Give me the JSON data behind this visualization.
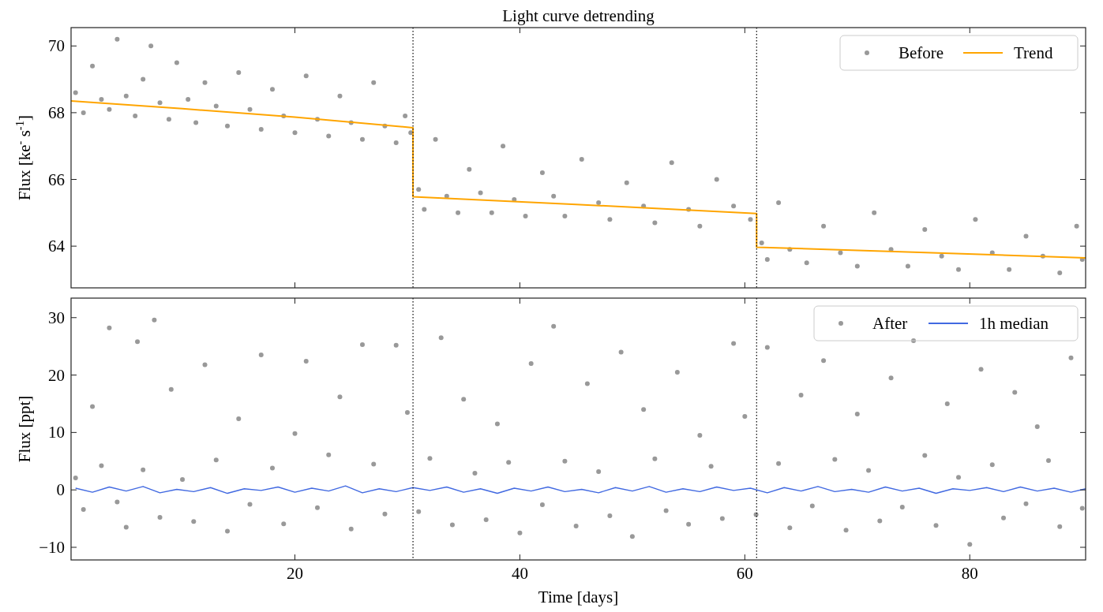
{
  "chart_data": [
    {
      "type": "scatter",
      "title": "Light curve detrending",
      "ylabel": "Flux [ke$^{-}$ s$^{-1}$]",
      "xlim": [
        0.1,
        90.3
      ],
      "xticks": [
        20,
        40,
        60,
        80
      ],
      "ylim": [
        62.75,
        70.55
      ],
      "yticks": [
        64,
        66,
        68,
        70
      ],
      "tick_labels": "y",
      "legend": "top right",
      "marker": "circle",
      "ref_lines": [
        {
          "axis": "x",
          "value": 30.5,
          "color": "#000000",
          "line_style": "dotted"
        },
        {
          "axis": "x",
          "value": 61.05,
          "color": "#000000",
          "line_style": "dotted"
        }
      ],
      "series": [
        {
          "name": "Before",
          "type": "scatter",
          "color": "#999999",
          "x": [
            0.5,
            1.2,
            2,
            2.8,
            3.5,
            4.2,
            5,
            5.8,
            6.5,
            7.2,
            8,
            8.8,
            9.5,
            10.5,
            11.2,
            12,
            13,
            14,
            15,
            16,
            17,
            18,
            19,
            20,
            21,
            22,
            23,
            24,
            25,
            26,
            27,
            28,
            29,
            29.8,
            30.3,
            31,
            31.5,
            32.5,
            33.5,
            34.5,
            35.5,
            36.5,
            37.5,
            38.5,
            39.5,
            40.5,
            42,
            43,
            44,
            45.5,
            47,
            48,
            49.5,
            51,
            52,
            53.5,
            55,
            56,
            57.5,
            59,
            60.5,
            61.5,
            62,
            63,
            64,
            65.5,
            67,
            68.5,
            70,
            71.5,
            73,
            74.5,
            76,
            77.5,
            79,
            80.5,
            82,
            83.5,
            85,
            86.5,
            88,
            89.5,
            90
          ],
          "values": [
            68.6,
            68.0,
            69.4,
            68.4,
            68.1,
            70.2,
            68.5,
            67.9,
            69.0,
            70.0,
            68.3,
            67.8,
            69.5,
            68.4,
            67.7,
            68.9,
            68.2,
            67.6,
            69.2,
            68.1,
            67.5,
            68.7,
            67.9,
            67.4,
            69.1,
            67.8,
            67.3,
            68.5,
            67.7,
            67.2,
            68.9,
            67.6,
            67.1,
            67.9,
            67.4,
            65.7,
            65.1,
            67.2,
            65.5,
            65.0,
            66.3,
            65.6,
            65.0,
            67.0,
            65.4,
            64.9,
            66.2,
            65.5,
            64.9,
            66.6,
            65.3,
            64.8,
            65.9,
            65.2,
            64.7,
            66.5,
            65.1,
            64.6,
            66.0,
            65.2,
            64.8,
            64.1,
            63.6,
            65.3,
            63.9,
            63.5,
            64.6,
            63.8,
            63.4,
            65.0,
            63.9,
            63.4,
            64.5,
            63.7,
            63.3,
            64.8,
            63.8,
            63.3,
            64.3,
            63.7,
            63.2,
            64.6,
            63.6
          ]
        },
        {
          "name": "Trend",
          "type": "line",
          "marker": "none",
          "color": "#ffa500",
          "x": [
            0.1,
            10,
            20,
            30.5,
            30.5,
            45,
            61.05,
            61.05,
            75,
            90.3
          ],
          "values": [
            68.35,
            68.12,
            67.87,
            67.55,
            65.48,
            65.25,
            64.98,
            63.97,
            63.82,
            63.65
          ]
        }
      ]
    },
    {
      "type": "scatter",
      "xlabel": "Time [days]",
      "ylabel": "Flux [ppt]",
      "xlim": [
        0.1,
        90.3
      ],
      "xticks": [
        20,
        40,
        60,
        80
      ],
      "ylim": [
        -12.2,
        33.4
      ],
      "yticks": [
        -10,
        0,
        10,
        20,
        30
      ],
      "legend": "top right",
      "marker": "circle",
      "ref_lines": [
        {
          "axis": "x",
          "value": 30.5,
          "color": "#000000",
          "line_style": "dotted"
        },
        {
          "axis": "x",
          "value": 61.05,
          "color": "#000000",
          "line_style": "dotted"
        }
      ],
      "series": [
        {
          "name": "After",
          "type": "scatter",
          "color": "#999999",
          "x": [
            0.5,
            1.2,
            2,
            2.8,
            3.5,
            4.2,
            5,
            6,
            6.5,
            7.5,
            8,
            9,
            10,
            11,
            12,
            13,
            14,
            15,
            16,
            17,
            18,
            19,
            20,
            21,
            22,
            23,
            24,
            25,
            26,
            27,
            28,
            29,
            30,
            31,
            32,
            33,
            34,
            35,
            36,
            37,
            38,
            39,
            40,
            41,
            42,
            43,
            44,
            45,
            46,
            47,
            48,
            49,
            50,
            51,
            52,
            53,
            54,
            55,
            56,
            57,
            58,
            59,
            60,
            61,
            62,
            63,
            64,
            65,
            66,
            67,
            68,
            69,
            70,
            71,
            72,
            73,
            74,
            75,
            76,
            77,
            78,
            79,
            80,
            81,
            82,
            83,
            84,
            85,
            86,
            87,
            88,
            89,
            90
          ],
          "values": [
            2.1,
            -3.4,
            14.5,
            4.2,
            28.2,
            -2.1,
            -6.5,
            25.8,
            3.5,
            29.6,
            -4.8,
            17.5,
            1.8,
            -5.5,
            21.8,
            5.2,
            -7.2,
            12.4,
            -2.5,
            23.5,
            3.8,
            -5.9,
            9.8,
            22.4,
            -3.1,
            6.1,
            16.2,
            -6.8,
            25.3,
            4.5,
            -4.2,
            25.2,
            13.5,
            -3.8,
            5.5,
            26.5,
            -6.1,
            15.8,
            2.9,
            -5.2,
            11.5,
            4.8,
            -7.5,
            22.0,
            -2.6,
            28.5,
            5.0,
            -6.3,
            18.5,
            3.2,
            -4.5,
            24.0,
            -8.1,
            14.0,
            5.4,
            -3.6,
            20.5,
            -6.0,
            9.5,
            4.1,
            -5.0,
            25.5,
            12.8,
            -4.3,
            24.8,
            4.6,
            -6.6,
            16.5,
            -2.8,
            22.5,
            5.3,
            -7.0,
            13.2,
            3.4,
            -5.4,
            19.5,
            -3.0,
            26.0,
            6.0,
            -6.2,
            15.0,
            2.2,
            -9.5,
            21.0,
            4.4,
            -4.9,
            17.0,
            -2.4,
            11.0,
            5.1,
            -6.4,
            23.0,
            -3.2
          ]
        },
        {
          "name": "1h median",
          "type": "line",
          "marker": "none",
          "color": "#4169e1",
          "x": [
            0.5,
            2,
            3.5,
            5,
            6.5,
            8,
            9.5,
            11,
            12.5,
            14,
            15.5,
            17,
            18.5,
            20,
            21.5,
            23,
            24.5,
            26,
            27.5,
            29,
            30.5,
            32,
            33.5,
            35,
            36.5,
            38,
            39.5,
            41,
            42.5,
            44,
            45.5,
            47,
            48.5,
            50,
            51.5,
            53,
            54.5,
            56,
            57.5,
            59,
            60.5,
            62,
            63.5,
            65,
            66.5,
            68,
            69.5,
            71,
            72.5,
            74,
            75.5,
            77,
            78.5,
            80,
            81.5,
            83,
            84.5,
            86,
            87.5,
            89,
            90.3
          ],
          "values": [
            0.3,
            -0.4,
            0.5,
            -0.2,
            0.6,
            -0.5,
            0.1,
            -0.3,
            0.4,
            -0.6,
            0.2,
            -0.1,
            0.5,
            -0.4,
            0.3,
            -0.2,
            0.7,
            -0.5,
            0.2,
            -0.3,
            0.4,
            -0.1,
            0.5,
            -0.4,
            0.2,
            -0.6,
            0.3,
            -0.2,
            0.5,
            -0.3,
            0.1,
            -0.5,
            0.4,
            -0.2,
            0.6,
            -0.4,
            0.2,
            -0.3,
            0.5,
            -0.1,
            0.3,
            -0.5,
            0.4,
            -0.2,
            0.6,
            -0.3,
            0.1,
            -0.4,
            0.5,
            -0.2,
            0.3,
            -0.6,
            0.2,
            -0.1,
            0.4,
            -0.3,
            0.5,
            -0.2,
            0.3,
            -0.4,
            0.2
          ]
        }
      ]
    }
  ]
}
